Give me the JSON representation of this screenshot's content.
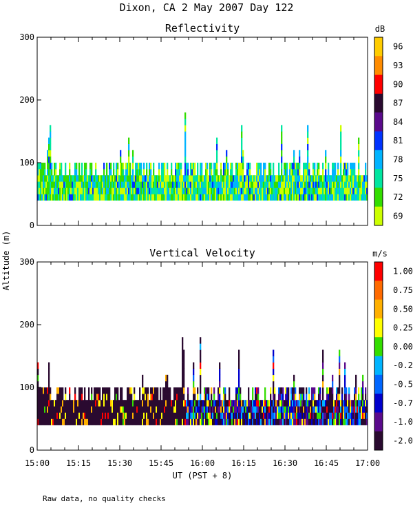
{
  "title": "Dixon, CA  2 May 2007  Day 122",
  "xlabel": "UT  (PST + 8)",
  "ylabel": "Altitude (m)",
  "footnote": "Raw data, no quality checks",
  "chart_data": [
    {
      "type": "heatmap",
      "title": "Reflectivity",
      "x_ticks": [
        "15:00",
        "15:15",
        "15:30",
        "15:45",
        "16:00",
        "16:15",
        "16:30",
        "16:45",
        "17:00"
      ],
      "xlim": [
        "15:00",
        "17:00"
      ],
      "ylim": [
        0,
        300
      ],
      "y_ticks": [
        0,
        100,
        200,
        300
      ],
      "data_range_altitude_m": [
        40,
        180
      ],
      "colorbar": {
        "unit": "dB",
        "labels": [
          "96",
          "93",
          "90",
          "87",
          "84",
          "81",
          "78",
          "75",
          "72",
          "69"
        ],
        "colors": [
          "#ffcc00",
          "#ff8c00",
          "#ff0000",
          "#2a0a30",
          "#5a0a8c",
          "#0033ff",
          "#00b4ff",
          "#00e6a0",
          "#33dd00",
          "#ccff00"
        ]
      }
    },
    {
      "type": "heatmap",
      "title": "Vertical Velocity",
      "x_ticks": [
        "15:00",
        "15:15",
        "15:30",
        "15:45",
        "16:00",
        "16:15",
        "16:30",
        "16:45",
        "17:00"
      ],
      "xlim": [
        "15:00",
        "17:00"
      ],
      "ylim": [
        0,
        300
      ],
      "y_ticks": [
        0,
        100,
        200,
        300
      ],
      "data_range_altitude_m": [
        40,
        180
      ],
      "colorbar": {
        "unit": "m/s",
        "labels": [
          "1.00",
          "0.75",
          "0.50",
          "0.25",
          "0.00",
          "-0.25",
          "-0.50",
          "-0.75",
          "-1.00",
          "-2.00"
        ],
        "colors": [
          "#ff0000",
          "#ff6a00",
          "#ffb000",
          "#ffff00",
          "#33dd00",
          "#00b4ff",
          "#0066ff",
          "#0000cc",
          "#5a0a8c",
          "#2a0a30"
        ]
      }
    }
  ]
}
